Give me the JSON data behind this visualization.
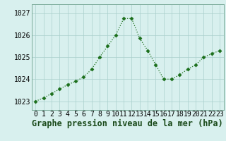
{
  "x": [
    0,
    1,
    2,
    3,
    4,
    5,
    6,
    7,
    8,
    9,
    10,
    11,
    12,
    13,
    14,
    15,
    16,
    17,
    18,
    19,
    20,
    21,
    22,
    23
  ],
  "y": [
    1023.0,
    1023.15,
    1023.35,
    1023.55,
    1023.75,
    1023.9,
    1024.1,
    1024.45,
    1025.0,
    1025.5,
    1026.0,
    1026.75,
    1026.75,
    1025.85,
    1025.3,
    1024.65,
    1024.0,
    1024.0,
    1024.2,
    1024.45,
    1024.65,
    1025.0,
    1025.15,
    1025.3
  ],
  "line_color": "#1a6e1a",
  "marker": "D",
  "marker_size": 2.5,
  "bg_color": "#d8f0ee",
  "grid_color": "#aacfcc",
  "xlabel": "Graphe pression niveau de la mer (hPa)",
  "ylabel_ticks": [
    1023,
    1024,
    1025,
    1026,
    1027
  ],
  "xlim": [
    -0.5,
    23.5
  ],
  "ylim": [
    1022.6,
    1027.4
  ],
  "title_fontsize": 8.5,
  "tick_fontsize": 7
}
